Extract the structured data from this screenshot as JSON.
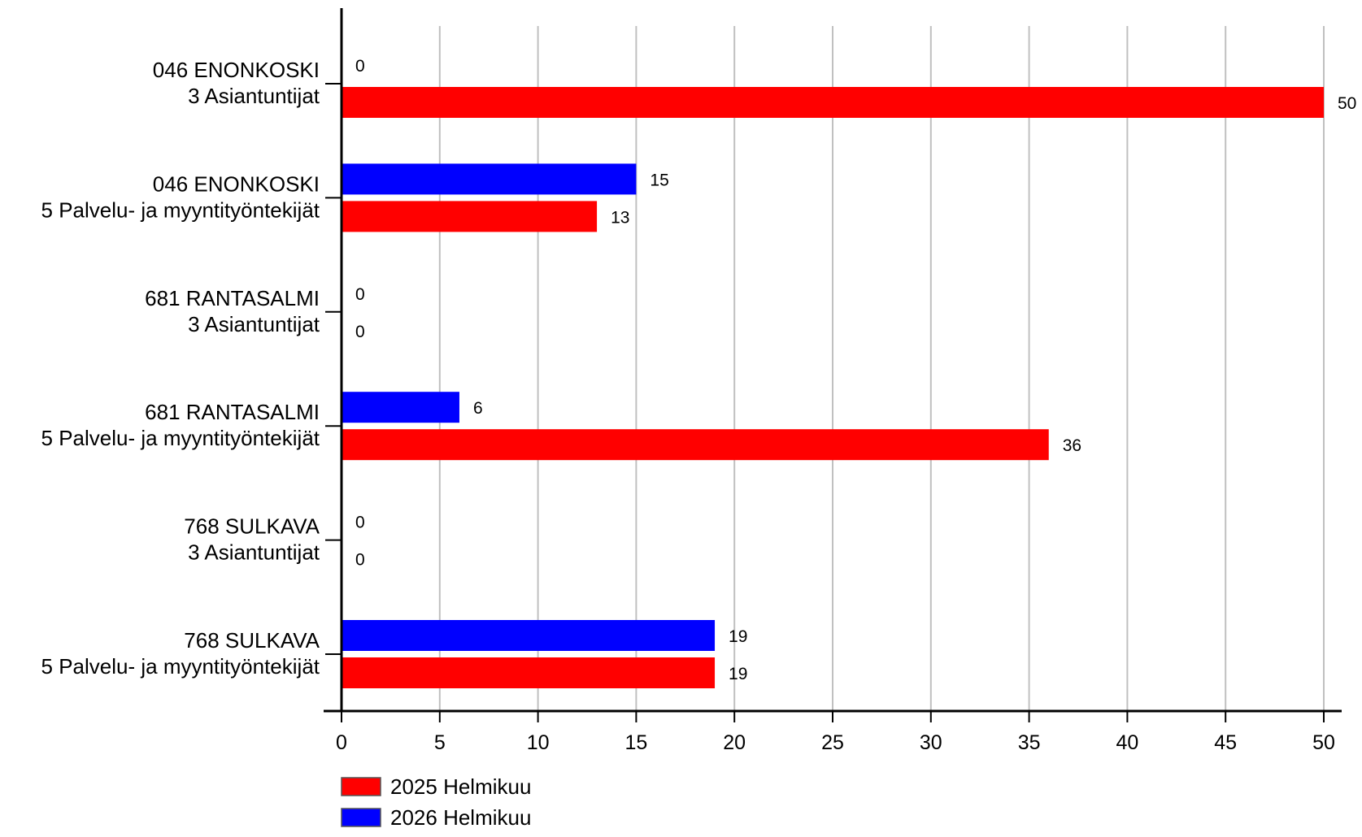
{
  "chart_data": {
    "type": "bar",
    "orientation": "horizontal",
    "categories": [
      [
        "046 ENONKOSKI",
        "3 Asiantuntijat"
      ],
      [
        "046 ENONKOSKI",
        "5 Palvelu- ja myyntityöntekijät"
      ],
      [
        "681 RANTASALMI",
        "3 Asiantuntijat"
      ],
      [
        "681 RANTASALMI",
        "5 Palvelu- ja myyntityöntekijät"
      ],
      [
        "768 SULKAVA",
        "3 Asiantuntijat"
      ],
      [
        "768 SULKAVA",
        "5 Palvelu- ja myyntityöntekijät"
      ]
    ],
    "series": [
      {
        "name": "2026 Helmikuu",
        "color": "#0000ff",
        "values": [
          0,
          15,
          0,
          6,
          0,
          19
        ]
      },
      {
        "name": "2025 Helmikuu",
        "color": "#ff0000",
        "values": [
          50,
          13,
          0,
          36,
          0,
          19
        ]
      }
    ],
    "xlim": [
      0,
      50
    ],
    "xticks": [
      0,
      5,
      10,
      15,
      20,
      25,
      30,
      35,
      40,
      45,
      50
    ],
    "grid": true,
    "legend": {
      "placement": "bottom-left",
      "entries": [
        {
          "label": "2025 Helmikuu",
          "color": "#ff0000"
        },
        {
          "label": "2026 Helmikuu",
          "color": "#0000ff"
        }
      ]
    },
    "title": "",
    "xlabel": "",
    "ylabel": ""
  }
}
